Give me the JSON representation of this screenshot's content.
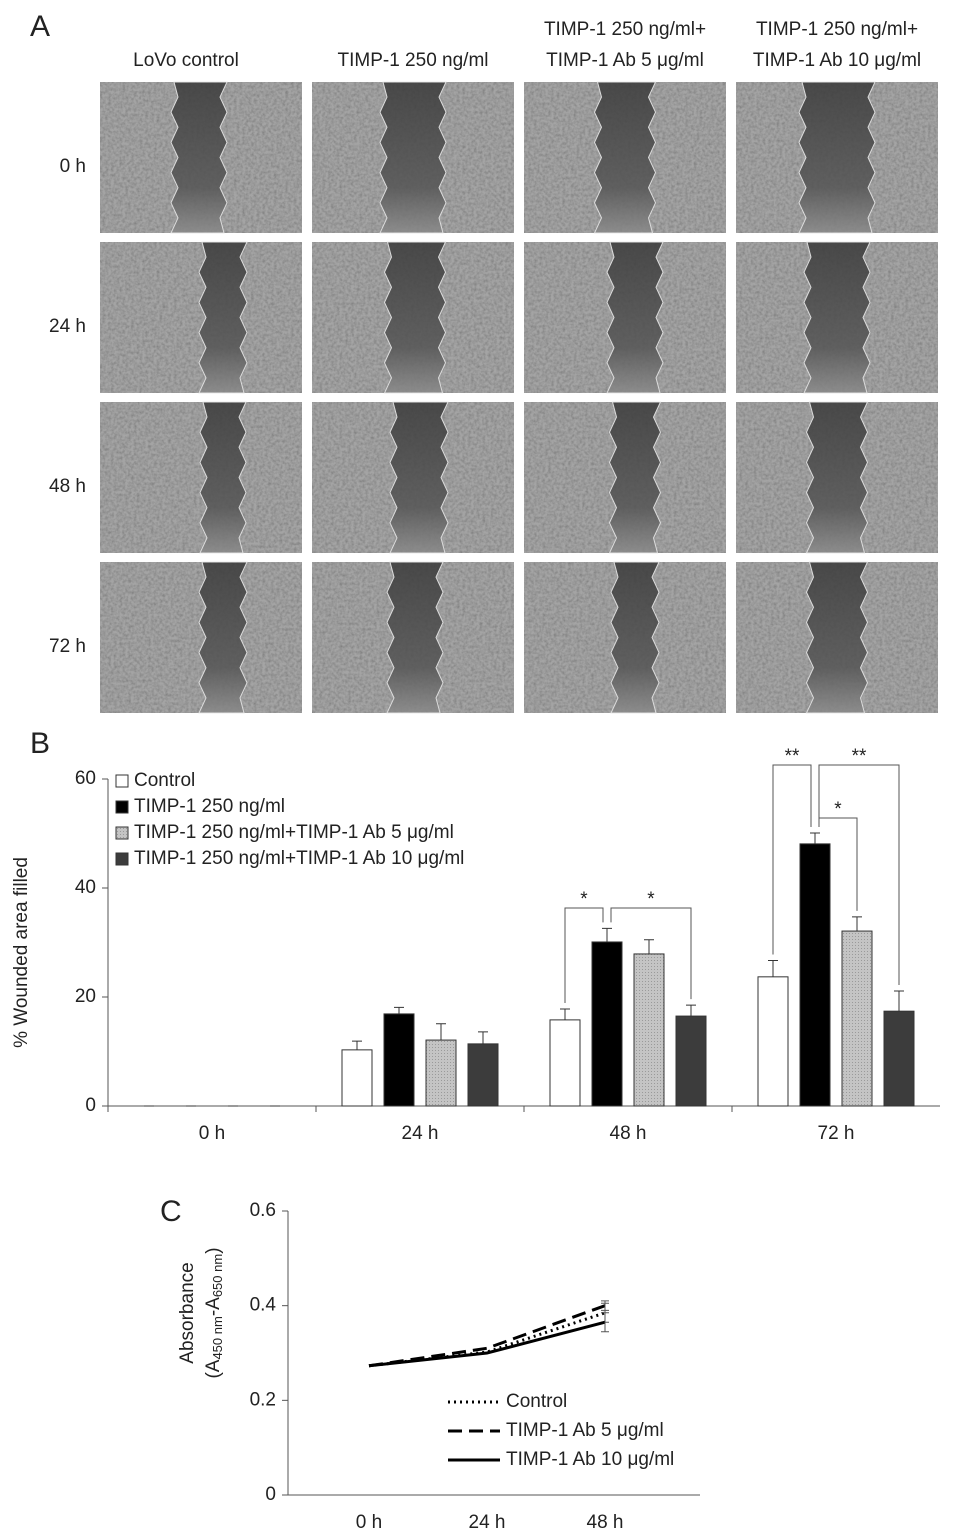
{
  "panel_a": {
    "label": "A",
    "columns": [
      [
        "LoVo control"
      ],
      [
        "TIMP-1 250 ng/ml"
      ],
      [
        "TIMP-1 250 ng/ml+",
        "TIMP-1 Ab 5 μg/ml"
      ],
      [
        "TIMP-1 250 ng/ml+",
        "TIMP-1 Ab 10 μg/ml"
      ]
    ],
    "rows": [
      "0 h",
      "24 h",
      "48 h",
      "72 h"
    ]
  },
  "chart_data": [
    {
      "type": "bar",
      "panel_label": "B",
      "y_label": "% Wounded area filled",
      "categories": [
        "0 h",
        "24 h",
        "48 h",
        "72 h"
      ],
      "series": [
        {
          "name": "Control",
          "color": "#ffffff",
          "values": [
            0,
            10.3,
            15.8,
            23.7
          ],
          "errors": [
            0,
            1.6,
            2,
            3
          ]
        },
        {
          "name": "TIMP-1 250 ng/ml",
          "color": "#000000",
          "values": [
            0,
            16.9,
            30.1,
            48.1
          ],
          "errors": [
            0,
            1.2,
            2.5,
            2
          ]
        },
        {
          "name": "TIMP-1 250 ng/ml+TIMP-1 Ab 5 μg/ml",
          "color": "#c4c4c4",
          "values": [
            0,
            12.1,
            27.9,
            32.1
          ],
          "errors": [
            0,
            3,
            2.6,
            2.6
          ]
        },
        {
          "name": "TIMP-1 250 ng/ml+TIMP-1 Ab 10 μg/ml",
          "color": "#3c3c3c",
          "values": [
            0,
            11.4,
            16.5,
            17.4
          ],
          "errors": [
            0,
            2.2,
            2,
            3.7
          ]
        }
      ],
      "ylim": [
        0,
        60
      ],
      "yticks": [
        0,
        20,
        40,
        60
      ],
      "legend": "top-left",
      "annotations": [
        "*",
        "*",
        "**",
        "*",
        "**"
      ]
    },
    {
      "type": "line",
      "panel_label": "C",
      "y_label": [
        "Absorbance",
        "(A",
        "450 nm",
        "-A",
        "650 nm",
        ")"
      ],
      "categories": [
        "0 h",
        "24 h",
        "48 h"
      ],
      "series": [
        {
          "name": "Control",
          "color": "#000000",
          "style": "dotted",
          "values": [
            0.273,
            0.302,
            0.385
          ],
          "errors": [
            0,
            0,
            0.02
          ]
        },
        {
          "name": "TIMP-1 Ab 5 μg/ml",
          "color": "#000000",
          "style": "dashed",
          "values": [
            0.273,
            0.31,
            0.4
          ],
          "errors": [
            0,
            0,
            0.01
          ]
        },
        {
          "name": "TIMP-1 Ab 10 μg/ml",
          "color": "#000000",
          "style": "solid",
          "values": [
            0.273,
            0.3,
            0.365
          ],
          "errors": [
            0,
            0,
            0.02
          ]
        }
      ],
      "ylim": [
        0,
        0.6
      ],
      "yticks": [
        0,
        0.2,
        0.4,
        0.6
      ],
      "legend": "bottom-center"
    }
  ]
}
